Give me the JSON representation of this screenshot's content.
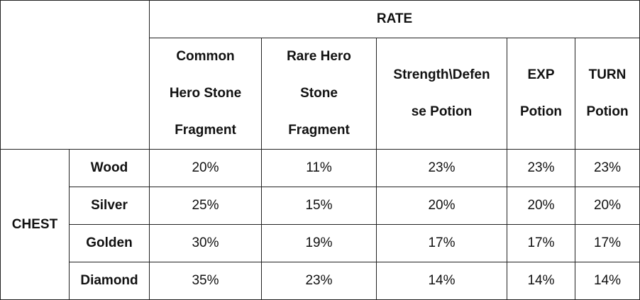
{
  "table": {
    "rate_header": "RATE",
    "chest_label": "CHEST",
    "columns": [
      {
        "line1": "Common",
        "line2": "Hero Stone",
        "line3": "Fragment"
      },
      {
        "line1": "Rare Hero",
        "line2": "Stone",
        "line3": "Fragment"
      },
      {
        "line1": "Strength\\Defen",
        "line2": "se Potion",
        "line3": ""
      },
      {
        "line1": "EXP",
        "line2": "Potion",
        "line3": ""
      },
      {
        "line1": "TURN",
        "line2": "Potion",
        "line3": ""
      }
    ],
    "rows": [
      {
        "chest": "Wood",
        "values": [
          "20%",
          "11%",
          "23%",
          "23%",
          "23%"
        ]
      },
      {
        "chest": "Silver",
        "values": [
          "25%",
          "15%",
          "20%",
          "20%",
          "20%"
        ]
      },
      {
        "chest": "Golden",
        "values": [
          "30%",
          "19%",
          "17%",
          "17%",
          "17%"
        ]
      },
      {
        "chest": "Diamond",
        "values": [
          "35%",
          "23%",
          "14%",
          "14%",
          "14%"
        ]
      }
    ]
  }
}
